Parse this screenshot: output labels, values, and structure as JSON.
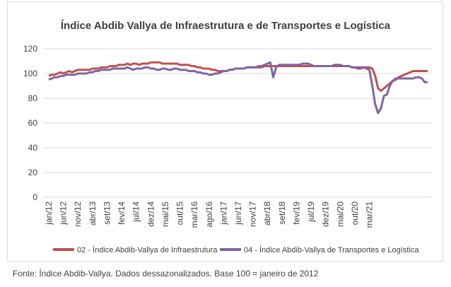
{
  "chart_data": {
    "type": "line",
    "title": "Índice Abdib Vallya de Infraestrutura e de Transportes e Logística",
    "xlabel": "",
    "ylabel": "",
    "ylim": [
      0,
      120
    ],
    "y_ticks": [
      0,
      20,
      40,
      60,
      80,
      100,
      120
    ],
    "grid": "horizontal",
    "legend_position": "bottom",
    "x_tick_labels": [
      "jan/12",
      "jun/12",
      "nov/12",
      "abr/13",
      "set/13",
      "fev/14",
      "jul/14",
      "dez/14",
      "mai/15",
      "out/15",
      "mar/16",
      "ago/16",
      "jan/17",
      "jun/17",
      "nov/17",
      "abr/18",
      "set/18",
      "fev/19",
      "jul/19",
      "dez/19",
      "mai/20",
      "out/20",
      "mar/21"
    ],
    "x_start": "2012-01",
    "x_end": "2021-03",
    "series": [
      {
        "name": "02 - Índice Abdib-Vallya de Infraestrutura",
        "color": "#c0504d",
        "values": [
          98,
          99,
          99,
          100,
          101,
          100,
          101,
          102,
          101,
          102,
          103,
          103,
          103,
          103,
          103,
          104,
          104,
          104,
          105,
          105,
          105,
          106,
          106,
          106,
          107,
          107,
          107,
          108,
          107,
          108,
          108,
          107,
          108,
          108,
          108,
          109,
          109,
          109,
          109,
          108,
          108,
          108,
          108,
          108,
          108,
          107,
          107,
          107,
          107,
          106,
          106,
          105,
          105,
          104,
          104,
          104,
          103,
          103,
          102,
          102,
          102,
          102,
          103,
          103,
          104,
          104,
          104,
          104,
          105,
          105,
          105,
          105,
          105,
          105,
          106,
          106,
          106,
          106,
          106,
          106,
          106,
          106,
          106,
          106,
          106,
          106,
          106,
          106,
          106,
          106,
          106,
          106,
          106,
          106,
          106,
          106,
          106,
          106,
          106,
          106,
          106,
          106,
          106,
          106,
          105,
          105,
          104,
          104,
          105,
          105,
          105,
          104,
          98,
          88,
          86,
          88,
          90,
          92,
          94,
          95,
          97,
          98,
          99,
          100,
          101,
          102,
          102,
          102,
          102,
          102,
          102
        ]
      },
      {
        "name": "04 - Índice Abdib-Vallya de Transportes e Logística",
        "color": "#8064a2",
        "values": [
          95,
          96,
          97,
          97,
          98,
          98,
          99,
          99,
          99,
          99,
          100,
          100,
          100,
          100,
          101,
          101,
          102,
          102,
          103,
          103,
          103,
          103,
          104,
          104,
          104,
          104,
          104,
          105,
          104,
          103,
          104,
          104,
          104,
          105,
          105,
          104,
          104,
          103,
          103,
          104,
          104,
          103,
          103,
          104,
          104,
          103,
          103,
          103,
          102,
          102,
          102,
          101,
          101,
          100,
          100,
          99,
          99,
          100,
          100,
          101,
          102,
          102,
          103,
          103,
          104,
          104,
          104,
          104,
          105,
          105,
          105,
          105,
          106,
          106,
          107,
          108,
          109,
          97,
          105,
          107,
          107,
          107,
          107,
          107,
          107,
          107,
          107,
          108,
          108,
          108,
          107,
          106,
          106,
          106,
          106,
          106,
          106,
          106,
          107,
          107,
          107,
          106,
          106,
          106,
          105,
          105,
          105,
          105,
          105,
          104,
          103,
          90,
          75,
          68,
          72,
          82,
          83,
          90,
          94,
          96,
          96,
          96,
          96,
          96,
          96,
          96,
          97,
          97,
          96,
          93,
          93
        ]
      }
    ]
  },
  "footnote": "Fonte: Índice Abdib-Vallya. Dados dessazonalizados. Base 100 = janeiro de 2012"
}
